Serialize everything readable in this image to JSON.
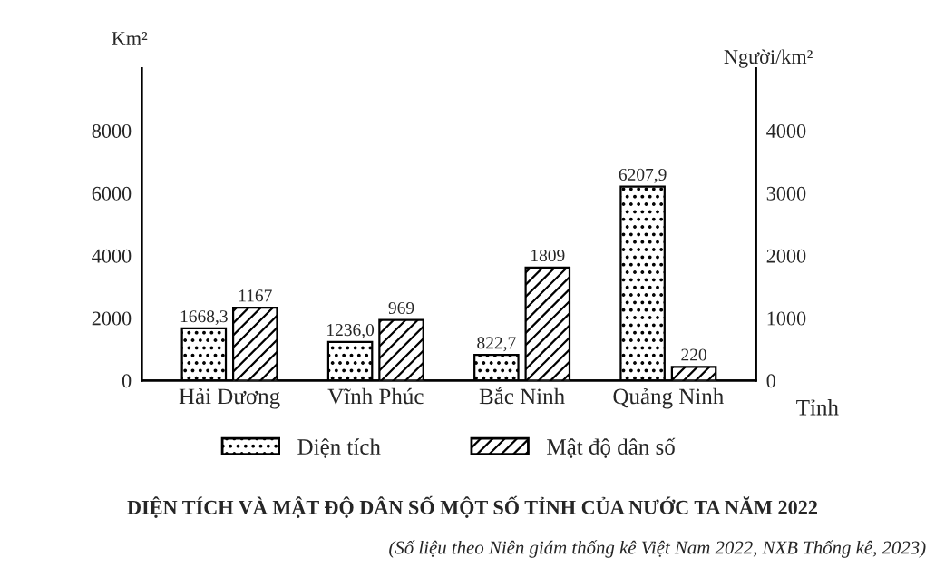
{
  "chart_data": {
    "type": "bar",
    "title": "DIỆN TÍCH VÀ MẬT ĐỘ DÂN SỐ MỘT SỐ TỈNH CỦA NƯỚC TA NĂM 2022",
    "xlabel": "Tỉnh",
    "ylabel": "Km²",
    "y2label": "Người/km²",
    "categories": [
      "Hải Dương",
      "Vĩnh Phúc",
      "Bắc Ninh",
      "Quảng Ninh"
    ],
    "series": [
      {
        "name": "Diện tích",
        "color": "#000000",
        "values": [
          1668.3,
          1236.0,
          822.7,
          6207.9
        ],
        "value_labels": [
          "1668,3",
          "1236,0",
          "822,7",
          "6207,9"
        ]
      },
      {
        "name": "Mật độ dân số",
        "color": "#000000",
        "axis": "y2",
        "values": [
          1167,
          969,
          1809,
          220
        ],
        "value_labels": [
          "1167",
          "969",
          "1809",
          "220"
        ]
      }
    ],
    "ylim": [
      0,
      10000
    ],
    "yticks": [
      0,
      2000,
      4000,
      6000,
      8000
    ],
    "y2lim": [
      0,
      5000
    ],
    "y2ticks": [
      0,
      1000,
      2000,
      3000,
      4000
    ],
    "grid": false,
    "legend": "bottom",
    "annotations": [
      "(Số liệu theo Niên giám thống kê Việt Nam 2022, NXB Thống kê, 2023)"
    ]
  }
}
